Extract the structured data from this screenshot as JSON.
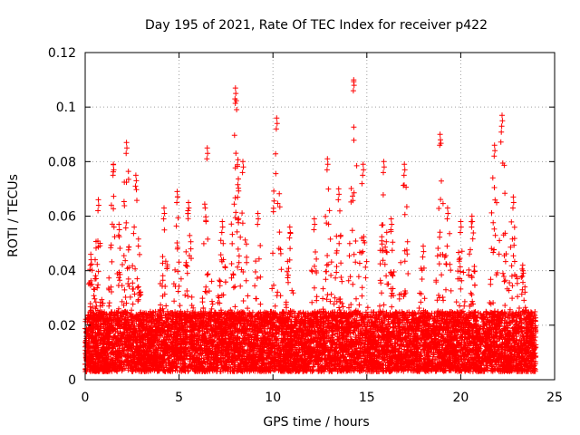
{
  "chart_data": {
    "type": "scatter",
    "title": "Day 195 of 2021, Rate Of TEC Index for receiver p422",
    "xlabel": "GPS time / hours",
    "ylabel": "ROTI / TECUs",
    "xlim": [
      0,
      25
    ],
    "ylim": [
      0,
      0.12
    ],
    "xticks": [
      0,
      5,
      10,
      15,
      20,
      25
    ],
    "yticks": [
      0,
      0.02,
      0.04,
      0.06,
      0.08,
      0.1,
      0.12
    ],
    "xtick_labels": [
      "0",
      "5",
      "10",
      "15",
      "20",
      "25"
    ],
    "ytick_labels": [
      "0",
      "0.02",
      "0.04",
      "0.06",
      "0.08",
      "0.1",
      "0.12"
    ],
    "grid": true,
    "marker": "+",
    "color": "#ff0000",
    "series": [
      {
        "name": "p422",
        "peaks": [
          {
            "x": 0.3,
            "y": 0.046
          },
          {
            "x": 0.7,
            "y": 0.066
          },
          {
            "x": 1.5,
            "y": 0.079
          },
          {
            "x": 1.8,
            "y": 0.057
          },
          {
            "x": 2.2,
            "y": 0.087
          },
          {
            "x": 2.7,
            "y": 0.075
          },
          {
            "x": 4.2,
            "y": 0.063
          },
          {
            "x": 4.9,
            "y": 0.069
          },
          {
            "x": 5.5,
            "y": 0.065
          },
          {
            "x": 6.5,
            "y": 0.085
          },
          {
            "x": 7.3,
            "y": 0.058
          },
          {
            "x": 8.0,
            "y": 0.107
          },
          {
            "x": 8.4,
            "y": 0.08
          },
          {
            "x": 9.2,
            "y": 0.061
          },
          {
            "x": 10.2,
            "y": 0.096
          },
          {
            "x": 10.9,
            "y": 0.056
          },
          {
            "x": 12.2,
            "y": 0.059
          },
          {
            "x": 12.9,
            "y": 0.081
          },
          {
            "x": 13.5,
            "y": 0.07
          },
          {
            "x": 14.3,
            "y": 0.11
          },
          {
            "x": 14.8,
            "y": 0.079
          },
          {
            "x": 15.9,
            "y": 0.08
          },
          {
            "x": 16.3,
            "y": 0.059
          },
          {
            "x": 17.0,
            "y": 0.079
          },
          {
            "x": 18.0,
            "y": 0.049
          },
          {
            "x": 18.9,
            "y": 0.09
          },
          {
            "x": 19.3,
            "y": 0.063
          },
          {
            "x": 20.0,
            "y": 0.058
          },
          {
            "x": 20.6,
            "y": 0.06
          },
          {
            "x": 21.8,
            "y": 0.086
          },
          {
            "x": 22.2,
            "y": 0.097
          },
          {
            "x": 22.8,
            "y": 0.067
          },
          {
            "x": 23.3,
            "y": 0.042
          }
        ],
        "baseline_range": [
          0.003,
          0.025
        ],
        "x_range": [
          0,
          24
        ]
      }
    ]
  }
}
